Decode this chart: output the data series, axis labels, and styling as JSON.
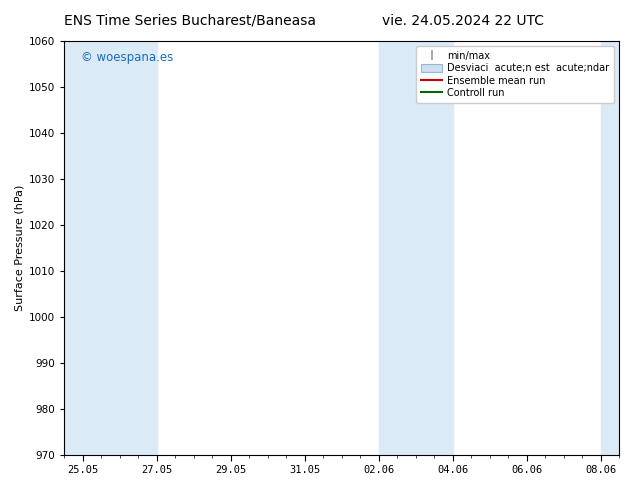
{
  "title_left": "ENS Time Series Bucharest/Baneasa",
  "title_right": "vie. 24.05.2024 22 UTC",
  "ylabel": "Surface Pressure (hPa)",
  "ylim": [
    970,
    1060
  ],
  "yticks": [
    970,
    980,
    990,
    1000,
    1010,
    1020,
    1030,
    1040,
    1050,
    1060
  ],
  "xtick_labels": [
    "25.05",
    "27.05",
    "29.05",
    "31.05",
    "02.06",
    "04.06",
    "06.06",
    "08.06"
  ],
  "xtick_positions": [
    0,
    2,
    4,
    6,
    8,
    10,
    12,
    14
  ],
  "watermark": "© woespana.es",
  "watermark_color": "#1a6bbf",
  "background_color": "#ffffff",
  "shaded_bands": [
    {
      "xstart": -0.5,
      "xend": 2.0,
      "color": "#daeaf7"
    },
    {
      "xstart": 8.0,
      "xend": 10.0,
      "color": "#daeaf7"
    },
    {
      "xstart": 14.0,
      "xend": 14.5,
      "color": "#daeaf7"
    }
  ],
  "legend_entries": [
    {
      "label": "min/max",
      "color": "#aaaaaa",
      "type": "errorbar"
    },
    {
      "label": "Desviaci  acute;n est  acute;ndar",
      "color": "#c5d9f0",
      "type": "bar"
    },
    {
      "label": "Ensemble mean run",
      "color": "#ff0000",
      "type": "line"
    },
    {
      "label": "Controll run",
      "color": "#008000",
      "type": "line"
    }
  ],
  "title_fontsize": 10,
  "axis_fontsize": 8,
  "tick_fontsize": 7.5,
  "legend_fontsize": 7,
  "fig_width": 6.34,
  "fig_height": 4.9,
  "dpi": 100
}
